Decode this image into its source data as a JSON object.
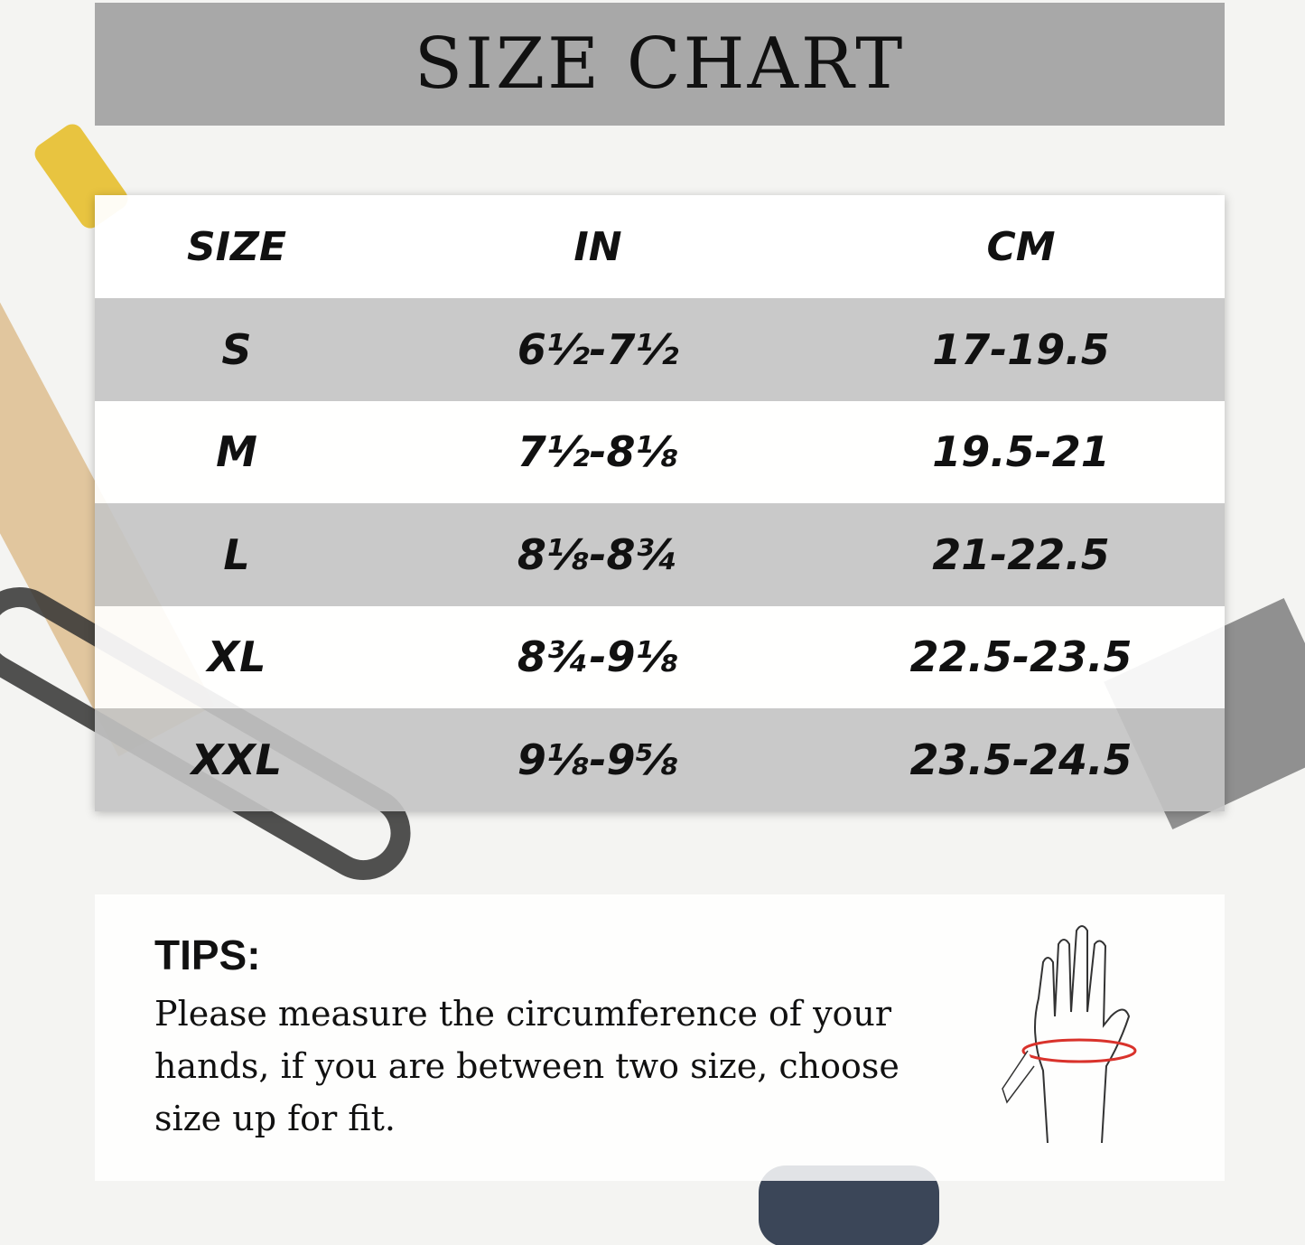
{
  "title": "SIZE CHART",
  "table": {
    "headers": [
      "SIZE",
      "IN",
      "CM"
    ],
    "rows": [
      {
        "size": "S",
        "in": "6½-7½",
        "cm": "17-19.5"
      },
      {
        "size": "M",
        "in": "7½-8⅛",
        "cm": "19.5-21"
      },
      {
        "size": "L",
        "in": "8⅛-8¾",
        "cm": "21-22.5"
      },
      {
        "size": "XL",
        "in": "8¾-9⅛",
        "cm": "22.5-23.5"
      },
      {
        "size": "XXL",
        "in": "9⅛-9⅝",
        "cm": "23.5-24.5"
      }
    ]
  },
  "tips": {
    "heading": "TIPS:",
    "text": "Please measure the circumference of your hands, if you are between two size, choose size up for fit."
  },
  "colors": {
    "title_band": "#a8a8a8",
    "row_gray": "#c4c4c4",
    "measure_tape_accent": "#d9322b"
  }
}
